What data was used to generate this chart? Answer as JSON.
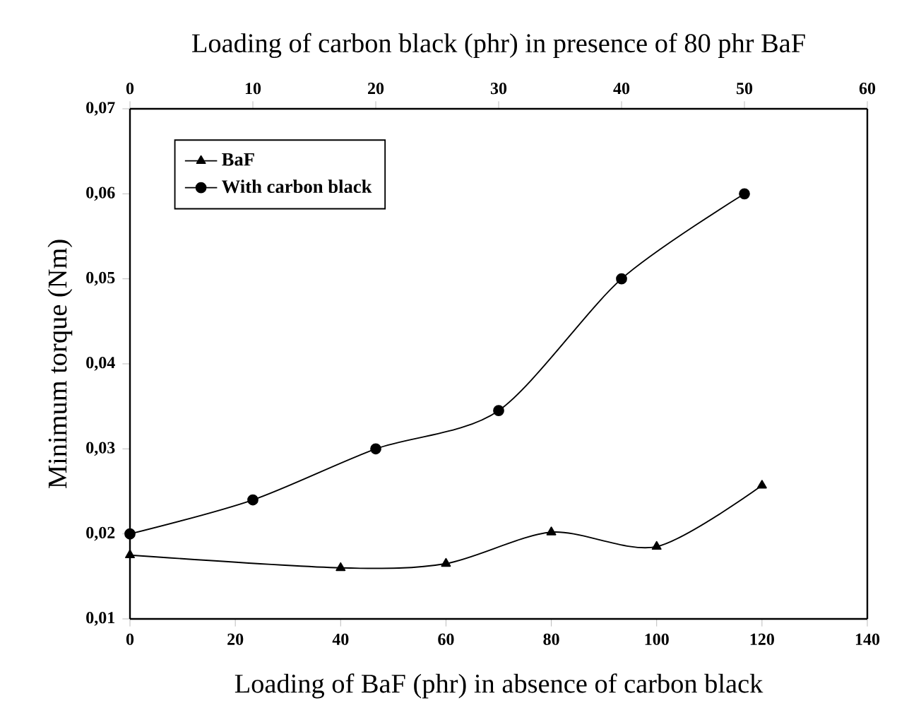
{
  "chart_data": {
    "type": "line",
    "xlabel": "Loading of BaF (phr) in absence of carbon black",
    "x2label": "Loading of carbon black (phr) in presence of 80 phr BaF",
    "ylabel": "Minimum torque (Nm)",
    "xlim": [
      0,
      140
    ],
    "xticks": [
      0,
      20,
      40,
      60,
      80,
      100,
      120,
      140
    ],
    "x2lim": [
      0,
      60
    ],
    "x2ticks": [
      0,
      10,
      20,
      30,
      40,
      50,
      60
    ],
    "ylim": [
      0.01,
      0.07
    ],
    "yticks": [
      {
        "value": 0.01,
        "label": "0,01"
      },
      {
        "value": 0.02,
        "label": "0,02"
      },
      {
        "value": 0.03,
        "label": "0,03"
      },
      {
        "value": 0.04,
        "label": "0,04"
      },
      {
        "value": 0.05,
        "label": "0,05"
      },
      {
        "value": 0.06,
        "label": "0,06"
      },
      {
        "value": 0.07,
        "label": "0,07"
      }
    ],
    "legend": "top left",
    "series": [
      {
        "name": "BaF",
        "color": "#000000",
        "marker": "triangle",
        "x": [
          0,
          40,
          60,
          80,
          100,
          120
        ],
        "values": [
          0.0175,
          0.016,
          0.0165,
          0.0202,
          0.0185,
          0.0257
        ]
      },
      {
        "name": "With carbon black",
        "color": "#000000",
        "marker": "circle",
        "axis": "x2",
        "x": [
          0,
          10,
          20,
          30,
          40,
          50
        ],
        "values": [
          0.02,
          0.024,
          0.03,
          0.0345,
          0.05,
          0.06
        ]
      }
    ]
  }
}
